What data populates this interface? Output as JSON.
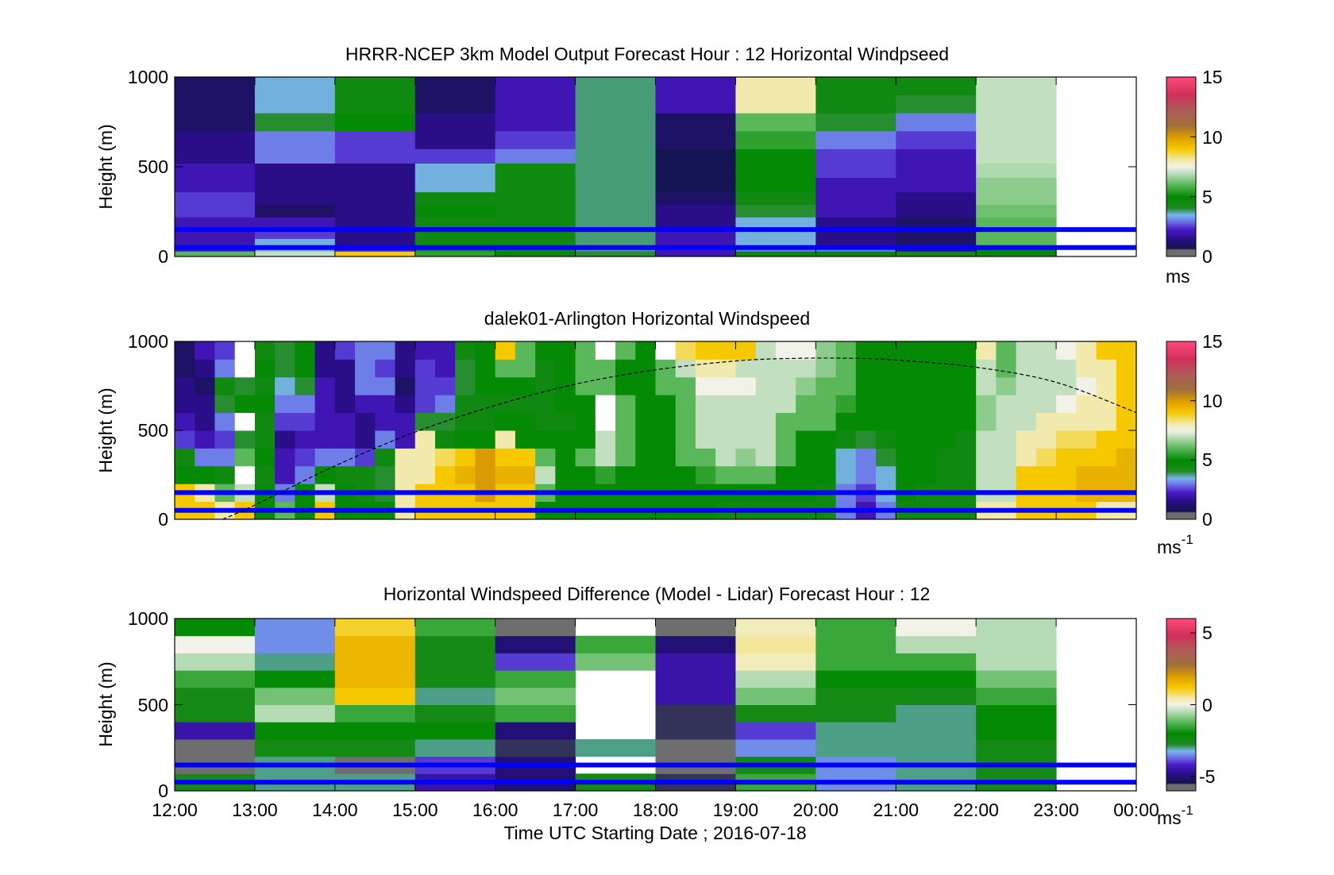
{
  "figure": {
    "xlabel": "Time UTC  Starting Date ; 2016-07-18",
    "time_ticks": [
      "12:00",
      "13:00",
      "14:00",
      "15:00",
      "16:00",
      "17:00",
      "18:00",
      "19:00",
      "20:00",
      "21:00",
      "22:00",
      "23:00",
      "00:00"
    ]
  },
  "chart_data": [
    {
      "type": "heatmap",
      "title": "HRRR-NCEP 3km Model Output   Forecast Hour : 12 Horizontal Windpseed",
      "ylabel": "Height (m)",
      "ylim": [
        0,
        1000
      ],
      "yticks": [
        "0",
        "500",
        "1000"
      ],
      "x_range_hours": [
        12,
        24
      ],
      "colorbar": {
        "range": [
          0,
          15
        ],
        "ticks": [
          "0",
          "5",
          "10",
          "15"
        ],
        "unit": "ms",
        "unit_sup": ""
      },
      "reference_lines_m": [
        50,
        150
      ],
      "height_levels_m": [
        0,
        30,
        60,
        100,
        160,
        220,
        290,
        360,
        440,
        520,
        600,
        700,
        800,
        900,
        1000
      ],
      "hours": [
        12,
        13,
        14,
        15,
        16,
        17,
        18,
        19,
        20,
        21,
        22
      ],
      "values": [
        [
          6,
          2,
          2,
          2,
          2,
          2.5,
          2.5,
          2,
          2,
          1.5,
          1.5,
          1,
          1,
          1
        ],
        [
          7,
          3.5,
          3.5,
          2.5,
          2,
          1,
          1.5,
          1.5,
          1.5,
          3,
          3,
          4,
          3.5,
          3.5
        ],
        [
          9,
          2,
          1.5,
          1.5,
          1.5,
          1.5,
          1.5,
          1.5,
          1.5,
          2.5,
          2.5,
          5,
          4.5,
          4.5
        ],
        [
          5.5,
          4.5,
          4.5,
          4.5,
          4.5,
          5,
          4.5,
          3.5,
          3.5,
          2.5,
          1.5,
          1.5,
          1,
          1
        ],
        [
          5,
          4.5,
          4.5,
          4.5,
          4.5,
          4.5,
          4.5,
          4.5,
          4.5,
          3,
          2.5,
          2,
          2,
          2
        ],
        [
          4,
          3.8,
          3.8,
          3.8,
          3.8,
          3.8,
          3.8,
          3.8,
          3.8,
          3.8,
          3.8,
          3.8,
          3.8,
          3.8
        ],
        [
          2,
          2,
          2,
          2,
          1.5,
          1.5,
          1,
          0.7,
          0.7,
          0.7,
          1,
          1,
          2,
          2
        ],
        [
          5,
          3,
          3.5,
          3.5,
          3.5,
          4,
          4.5,
          5,
          5,
          5,
          5.5,
          6,
          8,
          8
        ],
        [
          5,
          3,
          1.5,
          1.5,
          1.5,
          2,
          2,
          2,
          2.5,
          2.5,
          3,
          4,
          4.5,
          4.5
        ],
        [
          4.5,
          1.5,
          1,
          1,
          1,
          1.5,
          1.5,
          2,
          2,
          2,
          2.5,
          3,
          4,
          4.5
        ],
        [
          5,
          5,
          6,
          6,
          6,
          6.2,
          6.5,
          6.5,
          6.8,
          7,
          7,
          7,
          7,
          7
        ]
      ]
    },
    {
      "type": "heatmap",
      "title": "dalek01-Arlington  Horizontal Windspeed",
      "ylabel": "Height (m)",
      "ylim": [
        0,
        1000
      ],
      "yticks": [
        "0",
        "500",
        "1000"
      ],
      "x_range_hours": [
        12,
        24
      ],
      "colorbar": {
        "range": [
          0,
          15
        ],
        "ticks": [
          "0",
          "5",
          "10",
          "15"
        ],
        "unit": "ms",
        "unit_sup": "-1"
      },
      "reference_lines_m": [
        50,
        150
      ],
      "height_levels_m": [
        0,
        100,
        200,
        300,
        400,
        500,
        600,
        700,
        800,
        900,
        1000
      ],
      "columns": [
        {
          "h": 12.0,
          "v": [
            9,
            9,
            5,
            4.5,
            2.5,
            2,
            1.5,
            1.5,
            1,
            1
          ]
        },
        {
          "h": 12.25,
          "v": [
            9,
            8,
            5,
            3,
            2,
            1.5,
            1.5,
            1,
            1.5,
            2
          ]
        },
        {
          "h": 12.5,
          "v": [
            8,
            6,
            4.5,
            3,
            2.5,
            3,
            4,
            4.5,
            3,
            2.5
          ]
        },
        {
          "h": 12.75,
          "v": [
            9,
            7,
            16,
            6,
            4,
            16,
            5,
            4,
            16,
            16
          ]
        },
        {
          "h": 13.0,
          "v": [
            5,
            5,
            4.5,
            5,
            4.5,
            4.5,
            5,
            4.5,
            5,
            4.5
          ]
        },
        {
          "h": 13.25,
          "v": [
            6,
            3,
            2,
            2,
            1.5,
            2.5,
            3,
            3.5,
            4,
            4
          ]
        },
        {
          "h": 13.5,
          "v": [
            5,
            5,
            3,
            2.5,
            2,
            2.5,
            3,
            4,
            5,
            5
          ]
        },
        {
          "h": 13.75,
          "v": [
            9,
            7,
            5,
            3,
            2,
            2,
            2,
            2,
            1.5,
            1.5
          ]
        },
        {
          "h": 14.0,
          "v": [
            5,
            5,
            4.5,
            3,
            2,
            2,
            1.5,
            1.5,
            1.5,
            2.5
          ]
        },
        {
          "h": 14.25,
          "v": [
            5,
            4.5,
            4.5,
            2.5,
            1.5,
            1.5,
            2,
            3,
            3,
            3
          ]
        },
        {
          "h": 14.5,
          "v": [
            5,
            4,
            4,
            4.5,
            3,
            2,
            2,
            3,
            2.5,
            3
          ]
        },
        {
          "h": 14.75,
          "v": [
            8,
            8,
            8,
            8,
            2,
            2,
            1.5,
            1,
            1.5,
            1.5
          ]
        },
        {
          "h": 15.0,
          "v": [
            9,
            9,
            8,
            8,
            8,
            4,
            2.5,
            2.5,
            2.5,
            2
          ]
        },
        {
          "h": 15.25,
          "v": [
            9,
            9,
            9,
            8.5,
            4.5,
            4,
            3,
            2.5,
            2,
            2
          ]
        },
        {
          "h": 15.5,
          "v": [
            9,
            9,
            9.5,
            9,
            5,
            4.5,
            4.5,
            4,
            4,
            4.5
          ]
        },
        {
          "h": 15.75,
          "v": [
            9,
            10,
            10,
            10,
            5,
            4.5,
            4.5,
            5,
            5,
            5
          ]
        },
        {
          "h": 16.0,
          "v": [
            9,
            9,
            9.5,
            9,
            8,
            5,
            4.5,
            5,
            6,
            9
          ]
        },
        {
          "h": 16.25,
          "v": [
            9,
            9,
            9.5,
            9,
            5,
            5,
            4.5,
            5,
            6,
            6
          ]
        },
        {
          "h": 16.5,
          "v": [
            5,
            6,
            7,
            6,
            5,
            4.5,
            4.5,
            4.5,
            4.5,
            5
          ]
        },
        {
          "h": 16.75,
          "v": [
            5,
            5,
            5,
            5,
            5,
            4.5,
            5,
            5,
            5,
            5
          ]
        },
        {
          "h": 17.0,
          "v": [
            5,
            5,
            5,
            6,
            5,
            5,
            5,
            6,
            6,
            6
          ]
        },
        {
          "h": 17.25,
          "v": [
            5,
            5,
            5.5,
            7,
            7,
            16,
            16,
            6,
            6,
            16
          ]
        },
        {
          "h": 17.5,
          "v": [
            5,
            5,
            5,
            6,
            6,
            6,
            6,
            5,
            5,
            6
          ]
        },
        {
          "h": 17.75,
          "v": [
            5,
            5,
            5,
            5,
            5,
            5,
            5,
            5,
            5,
            5
          ]
        },
        {
          "h": 18.0,
          "v": [
            5,
            5,
            5,
            5,
            5,
            5,
            5,
            6,
            6,
            16
          ]
        },
        {
          "h": 18.25,
          "v": [
            5,
            5,
            5,
            6,
            6,
            6,
            6,
            6,
            7,
            8.5
          ]
        },
        {
          "h": 18.5,
          "v": [
            5,
            5,
            5.5,
            6,
            7,
            7,
            7,
            7.5,
            8,
            9
          ]
        },
        {
          "h": 18.75,
          "v": [
            4.5,
            5,
            6,
            7,
            7,
            7,
            7,
            7.5,
            8,
            9
          ]
        },
        {
          "h": 19.0,
          "v": [
            4.5,
            5,
            6,
            6.5,
            7,
            7,
            7,
            7.5,
            7,
            9
          ]
        },
        {
          "h": 19.25,
          "v": [
            4.5,
            5,
            6,
            7,
            7,
            7,
            7,
            7,
            7,
            7
          ]
        },
        {
          "h": 19.5,
          "v": [
            4.5,
            5,
            5,
            6,
            6,
            6,
            7,
            7,
            7,
            7.5
          ]
        },
        {
          "h": 19.75,
          "v": [
            4.5,
            5,
            5,
            5,
            5,
            6,
            6,
            6.5,
            7,
            7.5
          ]
        },
        {
          "h": 20.0,
          "v": [
            4.5,
            4.5,
            5,
            5,
            5,
            6,
            6,
            6,
            6.5,
            6.5
          ]
        },
        {
          "h": 20.25,
          "v": [
            3,
            3,
            3.5,
            3.5,
            4.5,
            5,
            5.5,
            6,
            6,
            6
          ]
        },
        {
          "h": 20.5,
          "v": [
            2,
            2.5,
            3,
            3,
            4,
            5,
            5,
            5,
            5,
            5
          ]
        },
        {
          "h": 20.75,
          "v": [
            3,
            3.5,
            3.5,
            4,
            4.5,
            5,
            5,
            5,
            5,
            5
          ]
        },
        {
          "h": 21.0,
          "v": [
            4.5,
            5,
            5,
            5,
            5,
            5,
            5,
            5,
            5,
            5
          ]
        },
        {
          "h": 21.25,
          "v": [
            4.5,
            4.5,
            5,
            5,
            5,
            5,
            5,
            5,
            5,
            5
          ]
        },
        {
          "h": 21.5,
          "v": [
            4.5,
            4.5,
            4.5,
            4.5,
            5,
            5,
            5,
            5,
            5,
            5
          ]
        },
        {
          "h": 21.75,
          "v": [
            4.5,
            4.5,
            4.5,
            4.5,
            4.5,
            5,
            5,
            5,
            5,
            5
          ]
        },
        {
          "h": 22.0,
          "v": [
            8,
            7,
            7,
            7,
            7,
            6.5,
            6.5,
            7,
            7,
            8
          ]
        },
        {
          "h": 22.25,
          "v": [
            8,
            7,
            7,
            7,
            7,
            7,
            7,
            6.5,
            6,
            6
          ]
        },
        {
          "h": 22.5,
          "v": [
            9,
            9,
            9,
            8,
            8,
            7,
            7,
            7,
            7,
            7
          ]
        },
        {
          "h": 22.75,
          "v": [
            9,
            9,
            9,
            8.5,
            8,
            8,
            7,
            7,
            7,
            7
          ]
        },
        {
          "h": 23.0,
          "v": [
            9,
            9,
            9,
            9,
            8.5,
            8,
            7.5,
            7,
            7,
            7.5
          ]
        },
        {
          "h": 23.25,
          "v": [
            9,
            9.5,
            9.5,
            9,
            8.5,
            8,
            8,
            7.5,
            8,
            8
          ]
        },
        {
          "h": 23.5,
          "v": [
            8,
            9.5,
            9.5,
            9,
            9,
            8,
            8,
            8,
            8,
            9
          ]
        },
        {
          "h": 23.75,
          "v": [
            8,
            9.5,
            9.5,
            9.5,
            9,
            9,
            9,
            9,
            9,
            9
          ]
        }
      ],
      "dashed_curve": {
        "x_hours": [
          12.6,
          13,
          14,
          15,
          16,
          17,
          18,
          19,
          19.75,
          20.5,
          21,
          22,
          23,
          24
        ],
        "y_m": [
          0,
          80,
          300,
          490,
          640,
          760,
          840,
          890,
          905,
          905,
          895,
          855,
          770,
          600
        ]
      }
    },
    {
      "type": "heatmap",
      "title": "Horizontal Windspeed Difference (Model - Lidar) Forecast Hour : 12",
      "ylabel": "Height (m)",
      "ylim": [
        0,
        1000
      ],
      "yticks": [
        "0",
        "500",
        "1000"
      ],
      "x_range_hours": [
        12,
        24
      ],
      "colorbar": {
        "range": [
          -6,
          6
        ],
        "ticks": [
          "-5",
          "0",
          "5"
        ],
        "unit": "ms",
        "unit_sup": "-1"
      },
      "reference_lines_m": [
        50,
        150
      ],
      "height_levels_m": [
        0,
        100,
        200,
        300,
        400,
        500,
        600,
        700,
        800,
        900,
        1000
      ],
      "hours": [
        12,
        13,
        14,
        15,
        16,
        17,
        18,
        19,
        20,
        21,
        22
      ],
      "values": [
        [
          -2.5,
          -6,
          -6,
          -4.5,
          -2.5,
          -2.5,
          -1.5,
          -0.5,
          0,
          -2
        ],
        [
          -3,
          -3,
          -2.5,
          -2,
          -0.5,
          -1,
          -2,
          -3,
          -3.5,
          -3.5
        ],
        [
          -3,
          -6,
          -2.5,
          -2,
          -1.5,
          1.2,
          1.5,
          1.5,
          1.5,
          1
        ],
        [
          -4.5,
          -4,
          -3,
          -2,
          -2.5,
          -3,
          -2.5,
          -2.5,
          -2.5,
          -1.5
        ],
        [
          -5,
          -5,
          -5.5,
          -5,
          -1.5,
          -1,
          -1.5,
          -4,
          -5,
          -6
        ],
        [
          -2.5,
          null,
          -3,
          null,
          null,
          null,
          null,
          -1,
          -1.5,
          null
        ],
        [
          -5.5,
          -6,
          -6,
          -5.5,
          -5.5,
          -4.5,
          -4.5,
          -4.5,
          -5,
          -6
        ],
        [
          -1.5,
          -2.5,
          -3.5,
          -4,
          -2.5,
          -1,
          -0.5,
          0.3,
          0.5,
          0.3
        ],
        [
          -3.5,
          -3.5,
          -3,
          -3,
          -2.5,
          -2.5,
          -2,
          -1.5,
          -1.5,
          -1.5
        ],
        [
          -3,
          -3,
          -3,
          -3,
          -3,
          -2.5,
          -2,
          -1.5,
          -0.5,
          0
        ],
        [
          -2.5,
          -2.5,
          -2.5,
          -2,
          -2,
          -1.5,
          -1,
          -0.5,
          -0.5,
          -0.5
        ]
      ]
    }
  ]
}
